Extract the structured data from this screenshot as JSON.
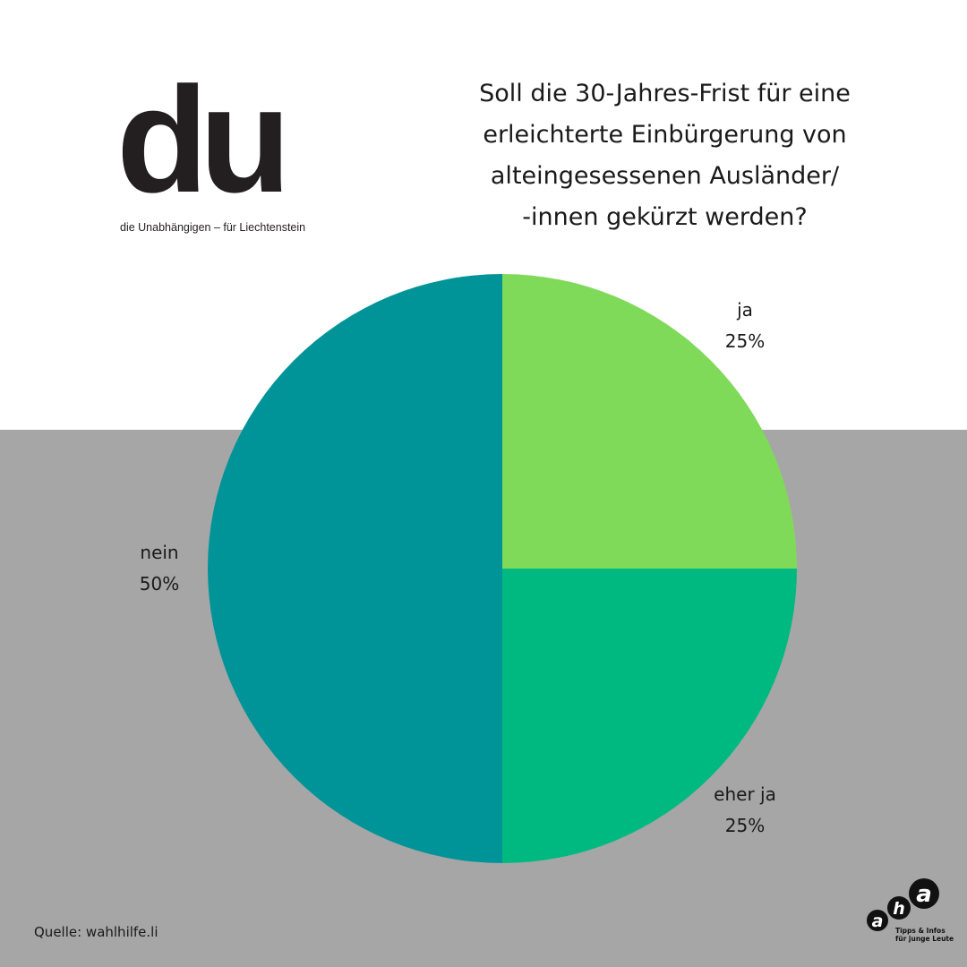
{
  "logo": {
    "mark": "du",
    "tagline": "die Unabhängigen – für Liechtenstein"
  },
  "title_lines": [
    "Soll die 30-Jahres-Frist für eine",
    "erleichterte Einbürgerung von",
    "alteingesessenen Ausländer/",
    "-innen gekürzt werden?"
  ],
  "chart_data": {
    "type": "pie",
    "title": "Soll die 30-Jahres-Frist für eine erleichterte Einbürgerung von alteingesessenen Ausländer/-innen gekürzt werden?",
    "slices": [
      {
        "label": "ja",
        "value": 25,
        "value_label": "25%",
        "color": "#80da5a"
      },
      {
        "label": "eher ja",
        "value": 25,
        "value_label": "25%",
        "color": "#00b980"
      },
      {
        "label": "nein",
        "value": 50,
        "value_label": "50%",
        "color": "#009498"
      }
    ],
    "start_angle": "12 o'clock",
    "direction": "clockwise"
  },
  "source": "Quelle: wahlhilfe.li",
  "aha_logo": {
    "letters": [
      "a",
      "h",
      "a"
    ],
    "tagline_lines": [
      "Tipps & Infos",
      "für junge Leute"
    ]
  },
  "colors": {
    "background_top": "#ffffff",
    "background_bottom": "#a6a6a6",
    "text": "#1a1a1a",
    "logo": "#231f20"
  }
}
